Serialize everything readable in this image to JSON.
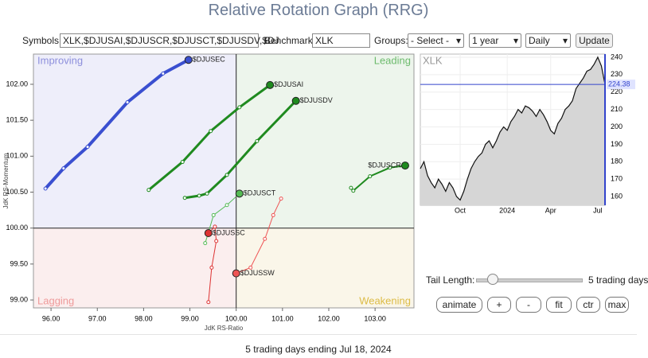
{
  "header": {
    "title": "Relative Rotation Graph (RRG)"
  },
  "controls": {
    "symbols_label": "Symbols:",
    "symbols_value": "XLK,$DJUSAI,$DJUSCR,$DJUSCT,$DJUSDV,$DJ",
    "benchmark_label": "Benchmark:",
    "benchmark_value": "XLK",
    "groups_label": "Groups:",
    "groups_value": "- Select -",
    "period": "1 year",
    "interval": "Daily",
    "update": "Update",
    "tail_label": "Tail Length:",
    "tail_value": "5 trading days",
    "buttons": [
      "animate",
      "+",
      "-",
      "fit",
      "ctr",
      "max"
    ]
  },
  "chart_data": [
    {
      "type": "scatter",
      "x_label": "JdK RS-Ratio",
      "y_label": "JdK RS-Momentum",
      "xlim": [
        95.62,
        103.84
      ],
      "ylim": [
        98.89,
        102.42
      ],
      "center": [
        100,
        100
      ],
      "xticks": [
        {
          "value": 96,
          "label": "96.00"
        },
        {
          "value": 97,
          "label": "97.00"
        },
        {
          "value": 98,
          "label": "98.00"
        },
        {
          "value": 99,
          "label": "99.00"
        },
        {
          "value": 100,
          "label": "100.00"
        },
        {
          "value": 101,
          "label": "101.00"
        },
        {
          "value": 102,
          "label": "102.00"
        },
        {
          "value": 103,
          "label": "103.00"
        }
      ],
      "yticks": [
        {
          "value": 99,
          "label": "99.00"
        },
        {
          "value": 99.5,
          "label": "99.50"
        },
        {
          "value": 100,
          "label": "100.00"
        },
        {
          "value": 100.5,
          "label": "100.50"
        },
        {
          "value": 101,
          "label": "101.00"
        },
        {
          "value": 101.5,
          "label": "101.50"
        },
        {
          "value": 102,
          "label": "102.00"
        }
      ],
      "quadrants": [
        {
          "label": "Improving",
          "color": "#eeeefa",
          "text_color": "#8d8fdc"
        },
        {
          "label": "Leading",
          "color": "#edf5ec",
          "text_color": "#6dbb6d"
        },
        {
          "label": "Lagging",
          "color": "#fbeeee",
          "text_color": "#ee9a9a"
        },
        {
          "label": "Weakening",
          "color": "#faf6e9",
          "text_color": "#dcbb45"
        }
      ],
      "series": [
        {
          "name": "$DJUSEC",
          "color": "#3a4fd0",
          "line_width": 4,
          "x": [
            95.88,
            96.27,
            96.79,
            97.65,
            98.42,
            98.97
          ],
          "y": [
            100.55,
            100.83,
            101.13,
            101.75,
            102.15,
            102.34
          ]
        },
        {
          "name": "$DJUSAI",
          "color": "#1f8a1f",
          "line_width": 3,
          "x": [
            98.11,
            98.84,
            99.45,
            100.07,
            100.73
          ],
          "y": [
            100.53,
            100.92,
            101.35,
            101.68,
            101.99
          ]
        },
        {
          "name": "$DJUSDV",
          "color": "#1f8a1f",
          "line_width": 3,
          "x": [
            98.89,
            99.2,
            99.37,
            99.8,
            100.45,
            101.29
          ],
          "y": [
            100.42,
            100.45,
            100.48,
            100.74,
            101.21,
            101.77
          ]
        },
        {
          "name": "$DJUSCT",
          "color": "#55bb55",
          "line_width": 1,
          "x": [
            99.33,
            99.4,
            99.51,
            99.8,
            100.07
          ],
          "y": [
            99.79,
            99.94,
            100.18,
            100.32,
            100.48
          ]
        },
        {
          "name": "$DJUSCR",
          "color": "#1f8a1f",
          "line_width": 2,
          "x": [
            102.48,
            102.53,
            102.89,
            103.32,
            103.65
          ],
          "y": [
            100.56,
            100.52,
            100.72,
            100.84,
            100.87
          ]
        },
        {
          "name": "$DJUSSC",
          "color": "#dd3333",
          "line_width": 1,
          "x": [
            99.4,
            99.47,
            99.57,
            99.54,
            99.4
          ],
          "y": [
            98.97,
            99.45,
            99.82,
            100.02,
            99.93
          ]
        },
        {
          "name": "$DJUSSW",
          "color": "#ee5555",
          "line_width": 1,
          "x": [
            100.97,
            100.8,
            100.62,
            100.31,
            100.0
          ],
          "y": [
            100.41,
            100.18,
            99.85,
            99.45,
            99.37
          ]
        }
      ]
    },
    {
      "type": "line",
      "title": "XLK",
      "color": "#111111",
      "fill": "#d6d6d6",
      "highlight": "#3344cc",
      "values": [
        176,
        180,
        172,
        168,
        165,
        170,
        167,
        163,
        168,
        165,
        160,
        158,
        163,
        170,
        176,
        180,
        183,
        185,
        190,
        192,
        188,
        192,
        197,
        200,
        198,
        203,
        206,
        210,
        208,
        212,
        211,
        209,
        206,
        210,
        207,
        203,
        198,
        196,
        202,
        205,
        210,
        212,
        215,
        222,
        225,
        228,
        232,
        233,
        236,
        240,
        235,
        224.38
      ],
      "last_value": 224.38,
      "xlim": [
        0,
        51
      ],
      "xticks": [
        {
          "value": 11,
          "label": "Oct"
        },
        {
          "value": 24,
          "label": "2024"
        },
        {
          "value": 36,
          "label": "Apr"
        },
        {
          "value": 49,
          "label": "Jul"
        }
      ],
      "ylim": [
        155,
        241.8
      ],
      "yticks": [
        160,
        170,
        180,
        190,
        200,
        210,
        220,
        230,
        240
      ]
    }
  ],
  "footer": "5 trading days ending Jul 18, 2024"
}
